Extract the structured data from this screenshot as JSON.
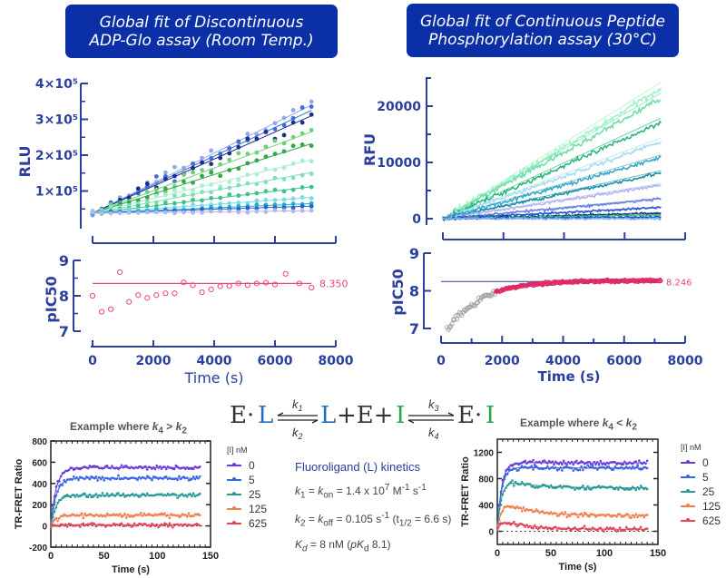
{
  "banners": {
    "left": [
      "Global fit of Discontinuous",
      "ADP-Glo assay (Room Temp.)"
    ],
    "right": [
      "Global fit of Continuous Peptide",
      "Phosphorylation assay (30°C)"
    ]
  },
  "colors": {
    "banner_bg": "#0b2fa6",
    "axis": "#2a3f9e",
    "pic50_marker": "#e8457a",
    "pic50_fit": "#e8457a",
    "grey_marker": "#999999",
    "L_blue": "#1f6fbf",
    "I_green": "#2aa44a"
  },
  "scheme": {
    "EL": "E·L",
    "k1": "k1",
    "k2": "k2",
    "middle": "L+E+I",
    "k3": "k3",
    "k4": "k4",
    "EI": "E·I"
  },
  "kinetics": {
    "title": "Fluoroligand (L) kinetics",
    "lines": [
      "k1 = kon = 1.4 x 10^7 M^-1 s^-1",
      "k2 = koff = 0.105 s^-1 (t1/2 = 6.6 s)",
      "Kd = 8 nM (pKd 8.1)"
    ]
  },
  "chart_data": [
    {
      "id": "adpglo-rlu",
      "type": "scatter",
      "title": "Global fit of Discontinuous ADP-Glo assay (Room Temp.)",
      "xlabel": "",
      "ylabel": "RLU",
      "xlim": [
        0,
        8000
      ],
      "ylim": [
        0,
        400000
      ],
      "xticks": [
        0,
        2000,
        4000,
        6000,
        8000
      ],
      "yticks": [
        100000,
        200000,
        300000,
        400000
      ],
      "ytick_labels": [
        "1×10⁵",
        "2×10⁵",
        "3×10⁵",
        "4×10⁵"
      ],
      "series": [
        {
          "name": "s1",
          "color": "#8fa8e8",
          "end": 340000
        },
        {
          "name": "s2",
          "color": "#3c6fd8",
          "end": 325000
        },
        {
          "name": "s3",
          "color": "#1b2f8f",
          "end": 310000
        },
        {
          "name": "s4",
          "color": "#6fd07a",
          "end": 265000
        },
        {
          "name": "s5",
          "color": "#2fa84a",
          "end": 232000
        },
        {
          "name": "s6",
          "color": "#a8eed0",
          "end": 187000
        },
        {
          "name": "s7",
          "color": "#7ee0b8",
          "end": 152000
        },
        {
          "name": "s8",
          "color": "#3bc48a",
          "end": 112000
        },
        {
          "name": "s9",
          "color": "#7fd8e8",
          "end": 82000
        },
        {
          "name": "s10",
          "color": "#1fb0c8",
          "end": 65000
        },
        {
          "name": "s11",
          "color": "#2a62c8",
          "end": 58000
        },
        {
          "name": "s12",
          "color": "#b0b8f0",
          "end": 45000
        }
      ],
      "start": 38000,
      "x_end": 7200
    },
    {
      "id": "adpglo-pic50",
      "type": "scatter",
      "xlabel": "Time (s)",
      "ylabel": "pIC50",
      "xlim": [
        0,
        8000
      ],
      "ylim": [
        7,
        9
      ],
      "xticks": [
        0,
        2000,
        4000,
        6000,
        8000
      ],
      "yticks": [
        7,
        8,
        9
      ],
      "fit_value": 8.35,
      "fit_label": "8.350",
      "x": [
        0,
        300,
        600,
        900,
        1200,
        1500,
        1800,
        2100,
        2400,
        2700,
        3000,
        3300,
        3600,
        3900,
        4200,
        4500,
        4800,
        5100,
        5400,
        5700,
        6000,
        6350,
        6800,
        7200
      ],
      "y": [
        8.0,
        7.55,
        7.62,
        8.67,
        7.83,
        8.02,
        7.94,
        8.02,
        8.07,
        8.07,
        8.38,
        8.3,
        8.1,
        8.18,
        8.27,
        8.28,
        8.35,
        8.3,
        8.35,
        8.37,
        8.32,
        8.62,
        8.35,
        8.23
      ]
    },
    {
      "id": "continuous-rfu",
      "type": "line",
      "title": "Global fit of Continuous Peptide Phosphorylation assay (30°C)",
      "xlabel": "",
      "ylabel": "RFU",
      "xlim": [
        0,
        8000
      ],
      "ylim": [
        0,
        25000
      ],
      "xticks": [
        0,
        2000,
        4000,
        6000,
        8000
      ],
      "yticks": [
        0,
        5000,
        10000,
        15000,
        20000,
        25000
      ],
      "ytick_labels": [
        "0",
        "",
        "10000",
        "",
        "20000",
        ""
      ],
      "x_end": 7200,
      "series": [
        {
          "name": "c1",
          "color": "#9ff2c8",
          "end": 23300
        },
        {
          "name": "c2",
          "color": "#6fe0a8",
          "end": 21500
        },
        {
          "name": "c3",
          "color": "#2ab87a",
          "end": 17200
        },
        {
          "name": "c4",
          "color": "#a8dcf0",
          "end": 13800
        },
        {
          "name": "c5",
          "color": "#3aa8c8",
          "end": 10900
        },
        {
          "name": "c6",
          "color": "#1890a8",
          "end": 8200
        },
        {
          "name": "c7",
          "color": "#b0b4f0",
          "end": 6000
        },
        {
          "name": "c8",
          "color": "#6a80e0",
          "end": 3500
        },
        {
          "name": "c9",
          "color": "#2a58d0",
          "end": 2000
        },
        {
          "name": "c10",
          "color": "#1a2f90",
          "end": 1000
        },
        {
          "name": "c11",
          "color": "#3ac070",
          "end": 700
        },
        {
          "name": "c12",
          "color": "#1a50c8",
          "end": 300
        },
        {
          "name": "c13",
          "color": "#80b0f0",
          "end": 0
        }
      ]
    },
    {
      "id": "continuous-pic50",
      "type": "scatter",
      "xlabel": "Time (s)",
      "ylabel": "pIC50",
      "xlim": [
        0,
        8000
      ],
      "ylim": [
        7,
        9
      ],
      "xticks": [
        0,
        2000,
        4000,
        6000,
        8000
      ],
      "yticks": [
        7,
        8,
        9
      ],
      "fit_value": 8.246,
      "fit_label": "8.246",
      "excluded_range_s": [
        0,
        1800
      ],
      "included_range_s": [
        1800,
        7200
      ],
      "model": "pIC50(t) approaching plateau 8.246 from ~7.0 at t≈200 s"
    },
    {
      "id": "trfret-k4-gt-k2",
      "type": "line",
      "title": "Example where k4 > k2",
      "xlabel": "Time (s)",
      "ylabel": "TR-FRET Ratio",
      "xlim": [
        0,
        150
      ],
      "ylim": [
        -200,
        800
      ],
      "xticks": [
        0,
        50,
        100,
        150
      ],
      "yticks": [
        -200,
        0,
        200,
        400,
        600,
        800
      ],
      "legend_title": "[I] nM",
      "legend_position": "right",
      "series": [
        {
          "name": "0",
          "color": "#6a3fd8",
          "plateau": 550,
          "peak": null
        },
        {
          "name": "5",
          "color": "#3a66e0",
          "plateau": 450,
          "peak": null
        },
        {
          "name": "25",
          "color": "#2a9a9a",
          "plateau": 290,
          "peak": null
        },
        {
          "name": "125",
          "color": "#f08050",
          "plateau": 100,
          "peak": null
        },
        {
          "name": "625",
          "color": "#e04858",
          "plateau": 10,
          "peak": null
        }
      ]
    },
    {
      "id": "trfret-k4-lt-k2",
      "type": "line",
      "title": "Example where k4 < k2",
      "xlabel": "Time (s)",
      "ylabel": "TR-FRET Ratio",
      "xlim": [
        0,
        150
      ],
      "ylim": [
        -200,
        1400
      ],
      "xticks": [
        0,
        50,
        100,
        150
      ],
      "yticks": [
        0,
        400,
        800,
        1200
      ],
      "legend_title": "[I] nM",
      "legend_position": "right",
      "series": [
        {
          "name": "0",
          "color": "#6a3fd8",
          "plateau": 1040,
          "peak": 1050
        },
        {
          "name": "5",
          "color": "#3a66e0",
          "plateau": 960,
          "peak": 980
        },
        {
          "name": "25",
          "color": "#2a9a9a",
          "plateau": 660,
          "peak": 820
        },
        {
          "name": "125",
          "color": "#f08050",
          "plateau": 240,
          "peak": 500
        },
        {
          "name": "625",
          "color": "#e04858",
          "plateau": 30,
          "peak": 200
        }
      ]
    }
  ]
}
